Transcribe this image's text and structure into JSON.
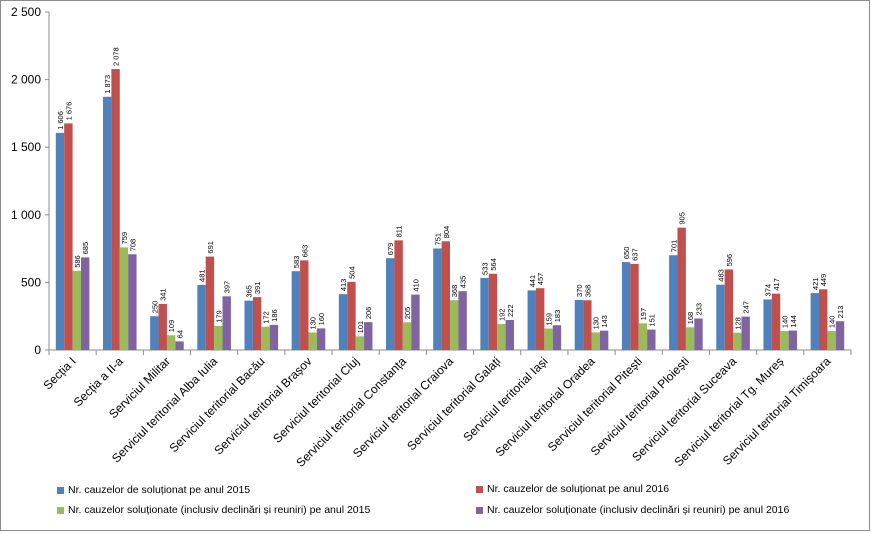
{
  "chart_data": {
    "type": "bar",
    "categories": [
      "Secția I",
      "Secția a II-a",
      "Serviciul Militar",
      "Serviciul teritorial Alba Iulia",
      "Serviciul teritorial Bacău",
      "Serviciul teritorial Brașov",
      "Serviciul teritorial Cluj",
      "Serviciul teritorial Constanța",
      "Serviciul teritorial Craiova",
      "Serviciul teritorial Galați",
      "Serviciul teritorial Iași",
      "Serviciul teritorial Oradea",
      "Serviciul teritorial Pitești",
      "Serviciul teritorial Ploiești",
      "Serviciul teritorial Suceava",
      "Serviciul teritorial Tg. Mureș",
      "Serviciul teritorial Timișoara"
    ],
    "series": [
      {
        "name": "Nr. cauzelor de soluționat pe anul 2015",
        "color": "#4f81bd",
        "values": [
          1606,
          1873,
          250,
          481,
          365,
          583,
          413,
          679,
          751,
          533,
          441,
          370,
          650,
          701,
          483,
          374,
          421
        ],
        "labels": [
          "1 606",
          "1 873",
          "250",
          "481",
          "365",
          "583",
          "413",
          "679",
          "751",
          "533",
          "441",
          "370",
          "650",
          "701",
          "483",
          "374",
          "421"
        ]
      },
      {
        "name": "Nr. cauzelor de soluționat pe anul 2016",
        "color": "#c0504d",
        "values": [
          1676,
          2078,
          341,
          691,
          391,
          663,
          504,
          811,
          804,
          564,
          457,
          368,
          637,
          905,
          596,
          417,
          449
        ],
        "labels": [
          "1 676",
          "2 078",
          "341",
          "691",
          "391",
          "663",
          "504",
          "811",
          "804",
          "564",
          "457",
          "368",
          "637",
          "905",
          "596",
          "417",
          "449"
        ]
      },
      {
        "name": "Nr. cauzelor soluționate (inclusiv declinări și reuniri) pe anul 2015",
        "color": "#9bbb59",
        "values": [
          586,
          759,
          109,
          179,
          172,
          130,
          101,
          205,
          368,
          192,
          159,
          130,
          197,
          168,
          128,
          140,
          140
        ],
        "labels": [
          "586",
          "759",
          "109",
          "179",
          "172",
          "130",
          "101",
          "205",
          "368",
          "192",
          "159",
          "130",
          "197",
          "168",
          "128",
          "140",
          "140"
        ]
      },
      {
        "name": "Nr. cauzelor soluționate (inclusiv declinări și reuniri) pe anul 2016",
        "color": "#8064a2",
        "values": [
          685,
          708,
          64,
          397,
          186,
          160,
          206,
          410,
          435,
          222,
          183,
          143,
          151,
          233,
          247,
          144,
          213
        ],
        "labels": [
          "685",
          "708",
          "64",
          "397",
          "186",
          "160",
          "206",
          "410",
          "435",
          "222",
          "183",
          "143",
          "151",
          "233",
          "247",
          "144",
          "213"
        ]
      }
    ],
    "y_ticks": [
      "0",
      "500",
      "1 000",
      "1 500",
      "2 000",
      "2 500"
    ],
    "ylim": [
      0,
      2500
    ],
    "legend_position": "bottom",
    "grid": false
  }
}
